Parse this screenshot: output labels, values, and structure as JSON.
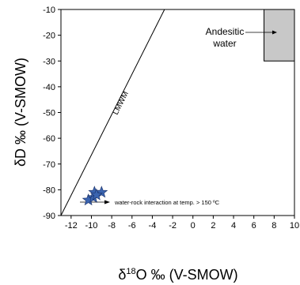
{
  "chart_data": {
    "type": "scatter",
    "xlabel": {
      "prefix": "δ",
      "sup": "18",
      "suffix": "O ‰ (V-SMOW)"
    },
    "ylabel": "δD ‰ (V-SMOW)",
    "xlim": [
      -13,
      10
    ],
    "ylim": [
      -90,
      -10
    ],
    "xticks": [
      -12,
      -10,
      -8,
      -6,
      -4,
      -2,
      0,
      2,
      4,
      6,
      8,
      10
    ],
    "yticks": [
      -90,
      -80,
      -70,
      -60,
      -50,
      -40,
      -30,
      -20,
      -10
    ],
    "grid": false,
    "lmwl": {
      "label": "LMWM",
      "x": [
        -13,
        -2.8
      ],
      "y": [
        -90,
        -10
      ]
    },
    "andesitic_water": {
      "label_line1": "Andesitic",
      "label_line2": "water",
      "x": [
        7,
        10
      ],
      "y": [
        -30,
        -10
      ],
      "color": "#c8c8c8"
    },
    "points": {
      "marker": "star",
      "color": "#3a64b0",
      "x": [
        -10.3,
        -9.8,
        -9.7,
        -9.0,
        -9.5
      ],
      "y": [
        -84,
        -83,
        -81,
        -81,
        -82
      ]
    },
    "annotation": {
      "text": "water-rock interaction at temp. > 150 ºC"
    }
  }
}
